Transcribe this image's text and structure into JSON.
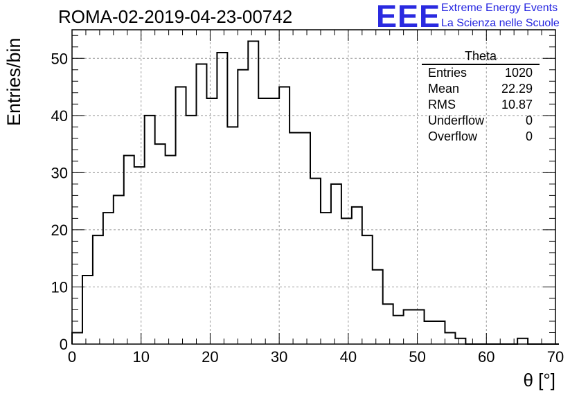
{
  "header": {
    "run_title": "ROMA-02-2019-04-23-00742",
    "logo_text": "EEE",
    "logo_line1": "Extreme Energy Events",
    "logo_line2": "La Scienza nelle Scuole",
    "logo_color": "#2a2ae0"
  },
  "stats": {
    "title": "Theta",
    "rows": [
      {
        "label": "Entries",
        "value": "1020"
      },
      {
        "label": "Mean",
        "value": "22.29"
      },
      {
        "label": "RMS",
        "value": "10.87"
      },
      {
        "label": "Underflow",
        "value": "0"
      },
      {
        "label": "Overflow",
        "value": "0"
      }
    ]
  },
  "chart_data": {
    "type": "bar",
    "style": "step-histogram",
    "title": "ROMA-02-2019-04-23-00742",
    "xlabel": "θ [°]",
    "ylabel": "Entries/bin",
    "xlim": [
      0,
      70
    ],
    "ylim": [
      0,
      55
    ],
    "grid": true,
    "bin_width": 1.5,
    "bin_edges_start": 0,
    "xticks": [
      0,
      10,
      20,
      30,
      40,
      50,
      60,
      70
    ],
    "yticks": [
      0,
      10,
      20,
      30,
      40,
      50
    ],
    "values": [
      2,
      12,
      19,
      23,
      26,
      33,
      31,
      40,
      35,
      33,
      45,
      40,
      49,
      43,
      51,
      38,
      48,
      53,
      43,
      43,
      45,
      37,
      37,
      29,
      23,
      28,
      22,
      24,
      19,
      13,
      7,
      5,
      6,
      6,
      4,
      4,
      2,
      1,
      0,
      0,
      0,
      0,
      0,
      1,
      0,
      0,
      0
    ],
    "line_color": "#000000"
  }
}
